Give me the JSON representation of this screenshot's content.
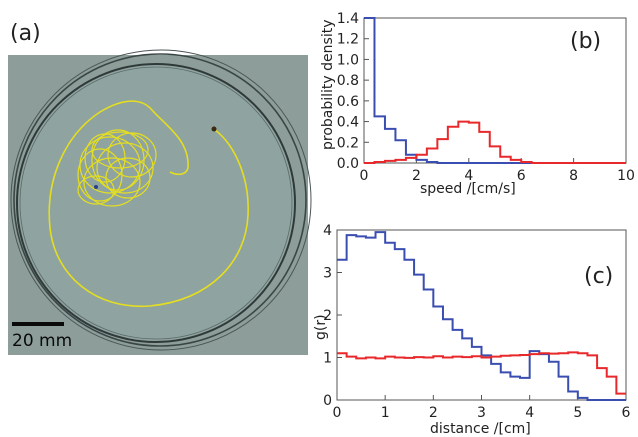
{
  "panel_a": {
    "label": "(a)",
    "scale_bar_text": "20 mm"
  },
  "chart_data": [
    {
      "type": "line",
      "panel_label": "(b)",
      "xlabel": "speed /[cm/s]",
      "ylabel": "probability density",
      "xlim": [
        0,
        10
      ],
      "ylim": [
        0,
        1.4
      ],
      "xticks": [
        "0",
        "2",
        "4",
        "6",
        "8",
        "10"
      ],
      "yticks": [
        "0.0",
        "0.2",
        "0.4",
        "0.6",
        "0.8",
        "1.0",
        "1.2",
        "1.4"
      ],
      "bin_width": 0.4,
      "grid": false,
      "series": [
        {
          "color": "#3a4db0",
          "values": [
            1.4,
            0.45,
            0.33,
            0.22,
            0.08,
            0.03,
            0.01,
            0.0,
            0.0,
            0.0,
            0.0,
            0.0,
            0.0,
            0.0,
            0.0,
            0.0,
            0.0,
            0.0,
            0.0,
            0.0,
            0.0,
            0.0,
            0.0,
            0.0,
            0.0
          ]
        },
        {
          "color": "#e8282a",
          "values": [
            0.0,
            0.01,
            0.02,
            0.03,
            0.05,
            0.08,
            0.14,
            0.23,
            0.35,
            0.4,
            0.39,
            0.3,
            0.16,
            0.06,
            0.03,
            0.01,
            0.0,
            0.0,
            0.0,
            0.0,
            0.0,
            0.0,
            0.0,
            0.0,
            0.0
          ]
        }
      ]
    },
    {
      "type": "line",
      "panel_label": "(c)",
      "xlabel": "distance /[cm]",
      "ylabel": "g(r)",
      "xlim": [
        0,
        6
      ],
      "ylim": [
        0,
        4
      ],
      "xticks": [
        "0",
        "1",
        "2",
        "3",
        "4",
        "5",
        "6"
      ],
      "yticks": [
        "0",
        "1",
        "2",
        "3",
        "4"
      ],
      "bin_width": 0.2,
      "grid": false,
      "series": [
        {
          "color": "#3a4db0",
          "values": [
            3.3,
            3.88,
            3.85,
            3.82,
            3.95,
            3.7,
            3.55,
            3.3,
            2.95,
            2.6,
            2.2,
            1.9,
            1.65,
            1.45,
            1.25,
            1.05,
            0.85,
            0.65,
            0.55,
            0.52,
            1.15,
            1.08,
            0.9,
            0.55,
            0.2,
            0.05,
            0.0,
            0.0,
            0.0,
            0.0
          ]
        },
        {
          "color": "#e8282a",
          "values": [
            1.1,
            1.02,
            0.98,
            1.0,
            0.98,
            1.02,
            1.0,
            0.99,
            1.01,
            1.0,
            1.03,
            1.0,
            1.02,
            1.01,
            1.03,
            1.0,
            1.02,
            1.04,
            1.05,
            1.06,
            1.08,
            1.1,
            1.09,
            1.1,
            1.12,
            1.1,
            1.05,
            0.75,
            0.55,
            0.15
          ]
        }
      ]
    }
  ]
}
